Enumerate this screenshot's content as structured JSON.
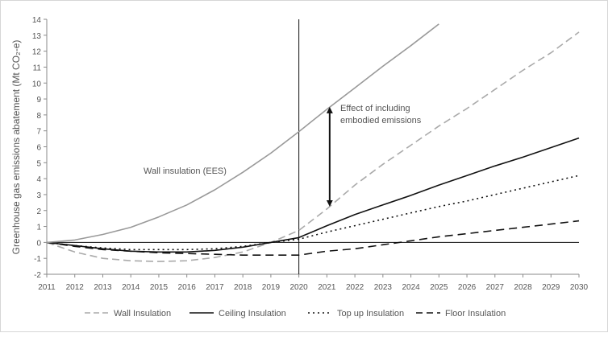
{
  "chart_data": {
    "type": "line",
    "ylabel": "Greenhouse gas emissions abatement (Mt CO₂-e)",
    "xlabel": "",
    "title": "",
    "x": [
      2011,
      2012,
      2013,
      2014,
      2015,
      2016,
      2017,
      2018,
      2019,
      2020,
      2021,
      2022,
      2023,
      2024,
      2025,
      2026,
      2027,
      2028,
      2029,
      2030
    ],
    "x_tick_labels": [
      "2011",
      "2012",
      "2013",
      "2014",
      "2015",
      "2016",
      "2017",
      "2018",
      "2019",
      "2020",
      "2021",
      "2022",
      "2023",
      "2024",
      "2025",
      "2026",
      "2027",
      "2028",
      "2029",
      "2030"
    ],
    "xlim": [
      2011,
      2030
    ],
    "ylim": [
      -2,
      14
    ],
    "y_tick_labels": [
      "-2",
      "-1",
      "0",
      "1",
      "2",
      "3",
      "4",
      "5",
      "6",
      "7",
      "8",
      "9",
      "10",
      "11",
      "12",
      "13",
      "14"
    ],
    "grid": false,
    "legend_position": "bottom",
    "series": [
      {
        "name": "Wall Insulation",
        "style": "long-dash",
        "color": "#aaaaaa",
        "values": [
          0,
          -0.6,
          -1.0,
          -1.15,
          -1.2,
          -1.15,
          -0.95,
          -0.6,
          0.0,
          0.75,
          2.1,
          3.6,
          4.9,
          6.1,
          7.3,
          8.4,
          9.6,
          10.8,
          11.9,
          13.2
        ]
      },
      {
        "name": "Ceiling Insulation",
        "style": "solid",
        "color": "#111111",
        "values": [
          0,
          -0.2,
          -0.4,
          -0.55,
          -0.6,
          -0.6,
          -0.5,
          -0.3,
          0.0,
          0.3,
          1.05,
          1.75,
          2.35,
          2.95,
          3.6,
          4.2,
          4.8,
          5.35,
          5.95,
          6.55
        ]
      },
      {
        "name": "Top up Insulation",
        "style": "dotted",
        "color": "#111111",
        "values": [
          0,
          -0.2,
          -0.35,
          -0.45,
          -0.45,
          -0.45,
          -0.4,
          -0.25,
          0.0,
          0.2,
          0.65,
          1.05,
          1.45,
          1.85,
          2.25,
          2.6,
          3.0,
          3.4,
          3.8,
          4.2
        ]
      },
      {
        "name": "Floor Insulation",
        "style": "dash",
        "color": "#111111",
        "values": [
          0,
          -0.25,
          -0.45,
          -0.55,
          -0.65,
          -0.7,
          -0.75,
          -0.8,
          -0.8,
          -0.8,
          -0.55,
          -0.4,
          -0.15,
          0.1,
          0.35,
          0.55,
          0.75,
          0.95,
          1.15,
          1.35
        ]
      },
      {
        "name": "Wall insulation (EES)",
        "style": "solid",
        "color": "#999999",
        "values": [
          0,
          0.15,
          0.5,
          0.95,
          1.6,
          2.35,
          3.3,
          4.4,
          5.6,
          6.95,
          8.35,
          9.7,
          11.05,
          12.35,
          13.7,
          null,
          null,
          null,
          null,
          null
        ]
      }
    ],
    "legend": [
      "Wall Insulation",
      "Ceiling Insulation",
      "Top up Insulation",
      "Floor Insulation"
    ],
    "annotations": {
      "ees_label": "Wall insulation (EES)",
      "effect_line1": "Effect of including",
      "effect_line2": "embodied emissions",
      "vertical_marker_x": 2020,
      "arrow_x": 2021.1,
      "arrow_y_range": [
        2.45,
        8.3
      ]
    }
  }
}
